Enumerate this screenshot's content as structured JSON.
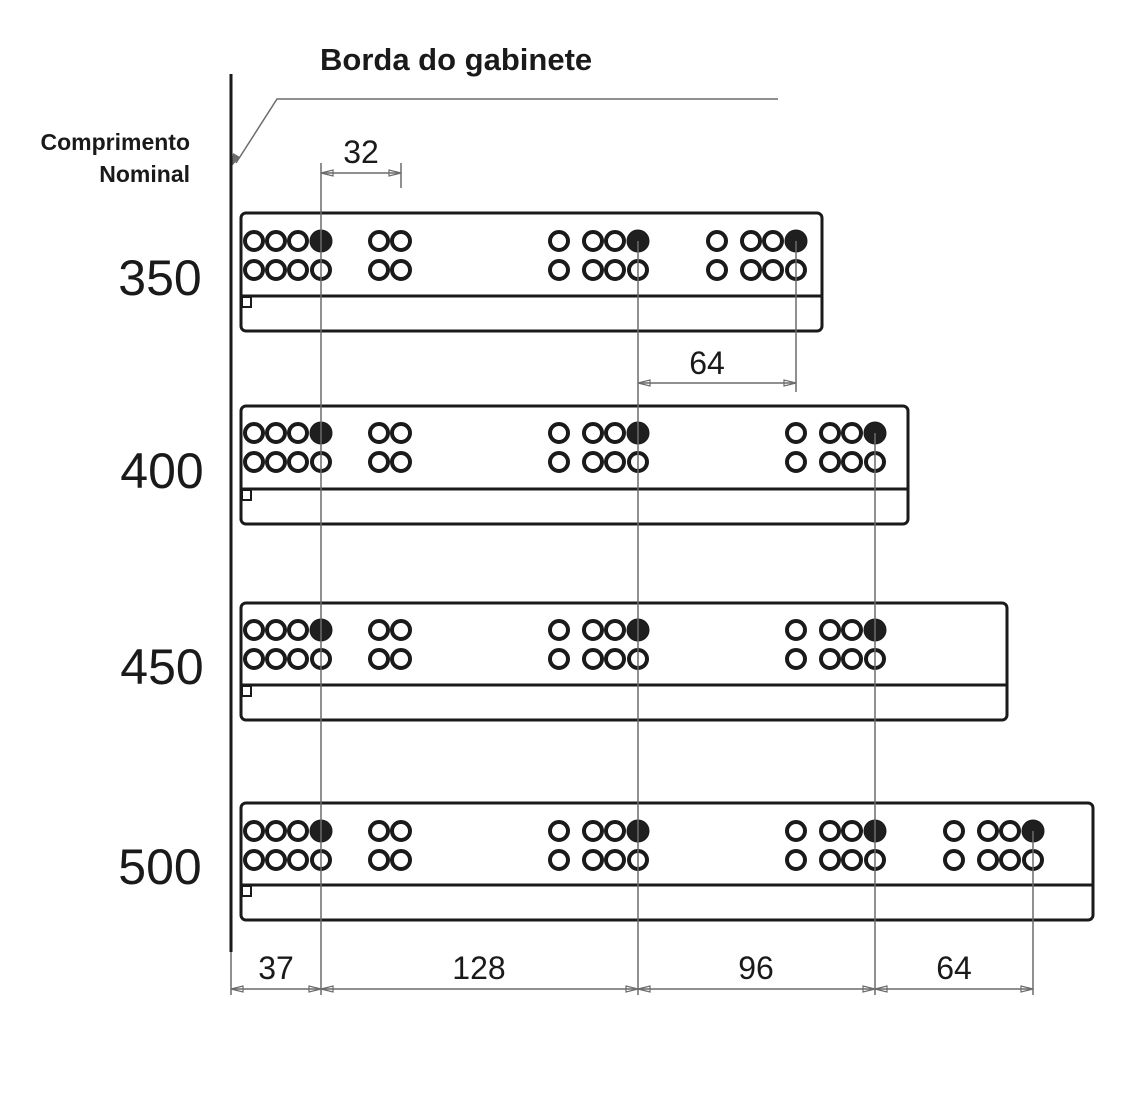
{
  "title": "Borda do gabinete",
  "axis_label_line1": "Comprimento",
  "axis_label_line2": "Nominal",
  "rails": [
    {
      "length": "350",
      "extra_groups": 1
    },
    {
      "length": "400",
      "extra_groups": 1
    },
    {
      "length": "450",
      "extra_groups": 1
    },
    {
      "length": "500",
      "extra_groups": 2
    }
  ],
  "dimensions": {
    "top_spacing": "32",
    "upper_spacing": "64",
    "bottom": [
      "37",
      "128",
      "96",
      "64"
    ]
  },
  "colors": {
    "line": "#1a1a1a",
    "guide": "#6b6b6b",
    "filled_hole": "#1f1f1f"
  }
}
